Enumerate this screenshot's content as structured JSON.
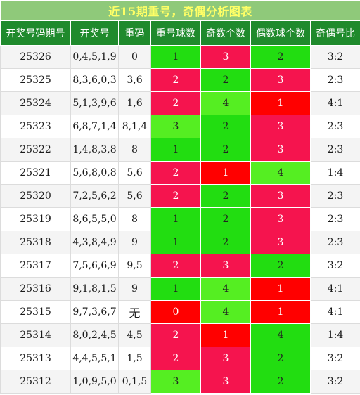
{
  "title": "近15期重号，奇偶分析图表",
  "headers": [
    "开奖号码期号",
    "开奖号",
    "重码",
    "重号球数",
    "奇数个数",
    "偶数球个数",
    "奇偶号比"
  ],
  "colors": {
    "title_bg": "#8fc97a",
    "title_text": "#ffff66",
    "header_bg": "#1f8a2c",
    "red": "#ff0000",
    "crimson": "#f5144e",
    "lime": "#55ee22",
    "green": "#22dd11"
  },
  "rows": [
    {
      "issue": "25326",
      "numbers": "0,4,5,1,9",
      "repeat": "0",
      "repeat_count": "1",
      "odd_count": "3",
      "even_count": "2",
      "ratio": "3:2"
    },
    {
      "issue": "25325",
      "numbers": "8,3,6,0,3",
      "repeat": "3,6",
      "repeat_count": "2",
      "odd_count": "2",
      "even_count": "3",
      "ratio": "2:3"
    },
    {
      "issue": "25324",
      "numbers": "5,1,3,9,6",
      "repeat": "1,6",
      "repeat_count": "2",
      "odd_count": "4",
      "even_count": "1",
      "ratio": "4:1"
    },
    {
      "issue": "25323",
      "numbers": "6,8,7,1,4",
      "repeat": "8,1,4",
      "repeat_count": "3",
      "odd_count": "2",
      "even_count": "3",
      "ratio": "2:3"
    },
    {
      "issue": "25322",
      "numbers": "1,4,8,3,8",
      "repeat": "8",
      "repeat_count": "1",
      "odd_count": "2",
      "even_count": "3",
      "ratio": "2:3"
    },
    {
      "issue": "25321",
      "numbers": "5,6,8,0,8",
      "repeat": "5,6",
      "repeat_count": "2",
      "odd_count": "1",
      "even_count": "4",
      "ratio": "1:4"
    },
    {
      "issue": "25320",
      "numbers": "7,2,5,6,2",
      "repeat": "5,6",
      "repeat_count": "2",
      "odd_count": "2",
      "even_count": "3",
      "ratio": "2:3"
    },
    {
      "issue": "25319",
      "numbers": "8,6,5,5,0",
      "repeat": "8",
      "repeat_count": "1",
      "odd_count": "2",
      "even_count": "3",
      "ratio": "2:3"
    },
    {
      "issue": "25318",
      "numbers": "4,3,8,4,9",
      "repeat": "9",
      "repeat_count": "1",
      "odd_count": "2",
      "even_count": "3",
      "ratio": "2:3"
    },
    {
      "issue": "25317",
      "numbers": "7,5,6,6,9",
      "repeat": "9,5",
      "repeat_count": "2",
      "odd_count": "3",
      "even_count": "2",
      "ratio": "3:2"
    },
    {
      "issue": "25316",
      "numbers": "9,1,8,1,5",
      "repeat": "9",
      "repeat_count": "1",
      "odd_count": "4",
      "even_count": "1",
      "ratio": "4:1"
    },
    {
      "issue": "25315",
      "numbers": "9,7,3,6,7",
      "repeat": "无",
      "repeat_count": "0",
      "odd_count": "4",
      "even_count": "1",
      "ratio": "4:1"
    },
    {
      "issue": "25314",
      "numbers": "8,0,2,4,5",
      "repeat": "4,5",
      "repeat_count": "2",
      "odd_count": "1",
      "even_count": "4",
      "ratio": "1:4"
    },
    {
      "issue": "25313",
      "numbers": "4,4,5,5,1",
      "repeat": "1,5",
      "repeat_count": "2",
      "odd_count": "3",
      "even_count": "2",
      "ratio": "3:2"
    },
    {
      "issue": "25312",
      "numbers": "1,0,9,5,0",
      "repeat": "0,1,5",
      "repeat_count": "3",
      "odd_count": "3",
      "even_count": "2",
      "ratio": "3:2"
    }
  ],
  "cell_colors": [
    [
      "green",
      "crimson",
      "green"
    ],
    [
      "crimson",
      "green",
      "crimson"
    ],
    [
      "crimson",
      "lime",
      "red"
    ],
    [
      "lime",
      "green",
      "crimson"
    ],
    [
      "green",
      "green",
      "crimson"
    ],
    [
      "crimson",
      "red",
      "lime"
    ],
    [
      "crimson",
      "green",
      "crimson"
    ],
    [
      "green",
      "green",
      "crimson"
    ],
    [
      "green",
      "green",
      "crimson"
    ],
    [
      "crimson",
      "crimson",
      "green"
    ],
    [
      "green",
      "lime",
      "red"
    ],
    [
      "red",
      "lime",
      "red"
    ],
    [
      "crimson",
      "red",
      "green"
    ],
    [
      "crimson",
      "crimson",
      "green"
    ],
    [
      "lime",
      "crimson",
      "green"
    ]
  ]
}
